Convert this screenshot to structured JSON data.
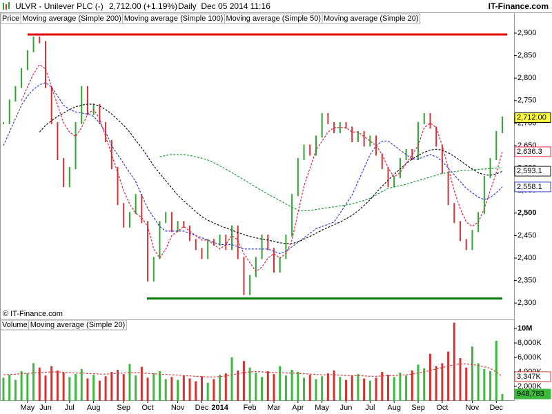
{
  "header": {
    "symbol": "ULVR - Unilever PLC (-)",
    "quote": "2,712.00 (+1.19%)",
    "period": "Daily  Dec 05 2014 11:16",
    "brand": "IT-Finance.com"
  },
  "watermark": "© IT-Finance.com",
  "chart_data": [
    {
      "type": "stock",
      "categories": [
        null,
        null,
        null,
        null,
        "May",
        null,
        null,
        "Jun",
        null,
        null,
        null,
        "Jul",
        null,
        null,
        null,
        "Aug",
        null,
        null,
        null,
        null,
        "Sep",
        null,
        null,
        null,
        "Oct",
        null,
        null,
        null,
        null,
        "Nov",
        null,
        null,
        null,
        "Dec",
        null,
        null,
        "2014",
        null,
        null,
        null,
        null,
        "Feb",
        null,
        null,
        null,
        "Mar",
        null,
        null,
        null,
        "Apr",
        null,
        null,
        null,
        "May",
        null,
        null,
        null,
        "Jun",
        null,
        null,
        null,
        "Jul",
        null,
        null,
        null,
        "Aug",
        null,
        null,
        null,
        "Sep",
        null,
        null,
        null,
        "Oct",
        null,
        null,
        null,
        null,
        "Nov",
        null,
        null,
        null,
        "Dec",
        null
      ],
      "series": [
        {
          "name": "Price",
          "up_color": "#2fa52f",
          "down_color": "#d93030",
          "color": "#ffff40",
          "last": {
            "value": 2712,
            "label": "2,712.00"
          },
          "values": [
            2700,
            2750,
            2780,
            2820,
            2860,
            2890,
            2880,
            2780,
            2700,
            2620,
            2560,
            2600,
            2700,
            2780,
            2720,
            2740,
            2700,
            2660,
            2600,
            2520,
            2470,
            2500,
            2540,
            2480,
            2350,
            2400,
            2480,
            2500,
            2460,
            2480,
            2470,
            2440,
            2420,
            2400,
            2440,
            2430,
            2450,
            2420,
            2470,
            2400,
            2320,
            2360,
            2400,
            2450,
            2420,
            2370,
            2400,
            2450,
            2540,
            2620,
            2650,
            2630,
            2670,
            2720,
            2700,
            2680,
            2700,
            2690,
            2660,
            2680,
            2650,
            2670,
            2630,
            2600,
            2560,
            2580,
            2620,
            2640,
            2620,
            2700,
            2720,
            2690,
            2650,
            2590,
            2520,
            2480,
            2440,
            2420,
            2460,
            2500,
            2580,
            2620,
            2680,
            2712
          ]
        },
        {
          "name": "Moving average (Simple 200)",
          "color": "#1e9e3c",
          "values": [
            null,
            null,
            null,
            null,
            null,
            null,
            null,
            null,
            null,
            null,
            null,
            null,
            null,
            null,
            null,
            null,
            null,
            null,
            null,
            null,
            null,
            null,
            null,
            null,
            null,
            null,
            2625,
            2628,
            2630,
            2630,
            2630,
            2628,
            2625,
            2622,
            2618,
            2612,
            2605,
            2598,
            2590,
            2582,
            2574,
            2566,
            2558,
            2550,
            2542,
            2535,
            2528,
            2520,
            2513,
            2507,
            2505,
            2506,
            2508,
            2510,
            2512,
            2514,
            2516,
            2518,
            2520,
            2524,
            2528,
            2533,
            2540,
            2548,
            2555,
            2558,
            2561,
            2564,
            2568,
            2572,
            2576,
            2580,
            2584,
            2588,
            2590,
            2592,
            2594,
            2595,
            2596,
            2597,
            2598,
            2599,
            2600,
            2601
          ]
        },
        {
          "name": "Moving average (Simple 100)",
          "color": "#111111",
          "last": {
            "value": 2593.1,
            "label": "2,593.1"
          },
          "values": [
            null,
            null,
            null,
            null,
            null,
            null,
            2680,
            2695,
            2705,
            2715,
            2722,
            2730,
            2736,
            2740,
            2742,
            2742,
            2738,
            2730,
            2720,
            2708,
            2695,
            2680,
            2662,
            2645,
            2625,
            2605,
            2588,
            2572,
            2556,
            2540,
            2527,
            2515,
            2503,
            2492,
            2484,
            2478,
            2472,
            2467,
            2462,
            2457,
            2452,
            2448,
            2445,
            2442,
            2440,
            2437,
            2434,
            2432,
            2432,
            2436,
            2442,
            2448,
            2455,
            2462,
            2468,
            2474,
            2480,
            2487,
            2495,
            2505,
            2517,
            2530,
            2545,
            2560,
            2573,
            2586,
            2598,
            2610,
            2620,
            2628,
            2635,
            2640,
            2642,
            2640,
            2634,
            2626,
            2617,
            2607,
            2598,
            2590,
            2585,
            2584,
            2587,
            2593.1
          ]
        },
        {
          "name": "Moving average (Simple 50)",
          "color": "#3040d8",
          "last": {
            "value": 2558.1,
            "label": "2,558.1"
          },
          "values": [
            2650,
            2680,
            2710,
            2740,
            2760,
            2775,
            2785,
            2790,
            2780,
            2760,
            2740,
            2730,
            2725,
            2722,
            2720,
            2715,
            2700,
            2680,
            2650,
            2630,
            2610,
            2590,
            2570,
            2540,
            2510,
            2490,
            2470,
            2460,
            2460,
            2460,
            2460,
            2455,
            2450,
            2445,
            2440,
            2435,
            2430,
            2430,
            2430,
            2425,
            2420,
            2420,
            2420,
            2420,
            2420,
            2415,
            2410,
            2415,
            2425,
            2435,
            2445,
            2455,
            2465,
            2470,
            2475,
            2480,
            2500,
            2520,
            2540,
            2570,
            2600,
            2630,
            2650,
            2660,
            2660,
            2650,
            2640,
            2630,
            2620,
            2620,
            2625,
            2630,
            2625,
            2615,
            2600,
            2585,
            2570,
            2555,
            2545,
            2535,
            2530,
            2535,
            2545,
            2558.1
          ]
        },
        {
          "name": "Moving average (Simple 20)",
          "color": "#e8203c",
          "last": {
            "value": 2636.3,
            "label": "2,636.3"
          },
          "values": [
            null,
            null,
            null,
            2750,
            2780,
            2810,
            2830,
            2820,
            2780,
            2740,
            2700,
            2680,
            2670,
            2690,
            2720,
            2730,
            2710,
            2670,
            2630,
            2590,
            2550,
            2520,
            2500,
            2490,
            2470,
            2420,
            2400,
            2420,
            2450,
            2460,
            2470,
            2460,
            2450,
            2440,
            2440,
            2430,
            2420,
            2430,
            2450,
            2440,
            2410,
            2390,
            2370,
            2380,
            2400,
            2410,
            2400,
            2410,
            2440,
            2500,
            2560,
            2600,
            2640,
            2660,
            2680,
            2690,
            2690,
            2690,
            2680,
            2680,
            2670,
            2660,
            2650,
            2630,
            2600,
            2580,
            2590,
            2610,
            2630,
            2650,
            2690,
            2700,
            2690,
            2650,
            2600,
            2550,
            2510,
            2480,
            2470,
            2480,
            2510,
            2550,
            2590,
            2636.3
          ]
        }
      ],
      "ylim": [
        2265,
        2946
      ],
      "yticks": [
        {
          "value": 2300,
          "label": "2,300"
        },
        {
          "value": 2350,
          "label": "2,350"
        },
        {
          "value": 2400,
          "label": "2,400"
        },
        {
          "value": 2450,
          "label": "2,450"
        },
        {
          "value": 2500,
          "label": "2,500"
        },
        {
          "value": 2550,
          "label": "2,550"
        },
        {
          "value": 2600,
          "label": "2,600"
        },
        {
          "value": 2650,
          "label": "2,650"
        },
        {
          "value": 2700,
          "label": "2,700"
        },
        {
          "value": 2750,
          "label": "2,750"
        },
        {
          "value": 2800,
          "label": "2,800"
        },
        {
          "value": 2850,
          "label": "2,850"
        },
        {
          "value": 2900,
          "label": "2,900"
        }
      ],
      "levels": [
        {
          "value": 2897,
          "color": "#e00000"
        },
        {
          "value": 2310,
          "color": "#007a00"
        }
      ]
    },
    {
      "type": "bar",
      "series": [
        {
          "name": "Volume",
          "color": "#3cb83c",
          "last": {
            "value": 948.783,
            "label": "948,783"
          },
          "values": [
            3200,
            3600,
            2900,
            4100,
            3800,
            5200,
            4600,
            3500,
            4800,
            4200,
            3900,
            3300,
            3700,
            4400,
            3100,
            3600,
            2800,
            3400,
            4000,
            4300,
            3700,
            5100,
            3500,
            4700,
            3200,
            3800,
            4100,
            3000,
            3300,
            2900,
            3500,
            3100,
            2700,
            3400,
            2500,
            3000,
            3600,
            3800,
            6000,
            4200,
            5500,
            4600,
            3900,
            3300,
            4100,
            3700,
            4800,
            3500,
            4300,
            4000,
            3200,
            3600,
            3000,
            3400,
            3800,
            4200,
            3300,
            2900,
            3500,
            3700,
            3100,
            2800,
            3200,
            4000,
            3600,
            3300,
            3900,
            3500,
            4200,
            5000,
            4500,
            6500,
            4800,
            5200,
            6800,
            10800,
            5900,
            4600,
            7500,
            5200,
            4400,
            4100,
            8300,
            948.783
          ]
        },
        {
          "name": "Moving average (Simple 20)",
          "color": "#d04040",
          "last": {
            "value": 3347,
            "label": "3,347K"
          },
          "values": [
            3600,
            3650,
            3700,
            3750,
            3800,
            3850,
            3900,
            3950,
            4000,
            4000,
            3950,
            3900,
            3850,
            3850,
            3800,
            3750,
            3700,
            3700,
            3750,
            3800,
            3850,
            3900,
            3900,
            3850,
            3800,
            3750,
            3700,
            3650,
            3600,
            3550,
            3500,
            3450,
            3400,
            3350,
            3300,
            3300,
            3350,
            3450,
            3600,
            3750,
            3900,
            4000,
            4050,
            4000,
            3950,
            3900,
            3900,
            3850,
            3850,
            3800,
            3750,
            3700,
            3650,
            3600,
            3600,
            3600,
            3550,
            3500,
            3500,
            3500,
            3450,
            3400,
            3400,
            3450,
            3500,
            3500,
            3550,
            3600,
            3700,
            3850,
            4000,
            4200,
            4400,
            4600,
            4800,
            5000,
            5100,
            5100,
            5000,
            4900,
            4700,
            4500,
            4000,
            3347
          ]
        }
      ],
      "ylim": [
        0,
        11240
      ],
      "yticks": [
        {
          "value": 2000,
          "label": "2,000K"
        },
        {
          "value": 4000,
          "label": "4,000K"
        },
        {
          "value": 6000,
          "label": "6,000K"
        },
        {
          "value": 8000,
          "label": "8,000K"
        },
        {
          "value": 10000,
          "label": "10M"
        }
      ]
    }
  ]
}
